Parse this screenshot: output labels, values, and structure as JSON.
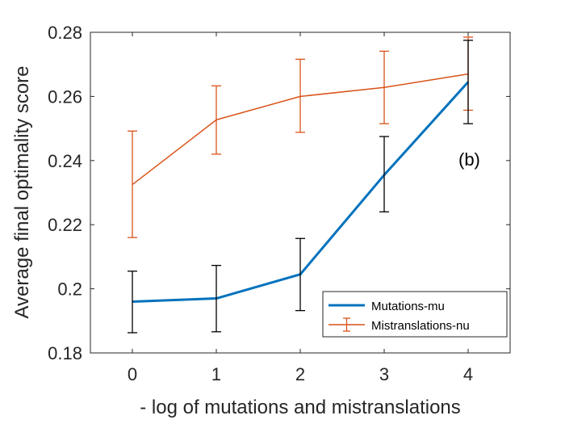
{
  "chart_data": {
    "type": "line",
    "title": "",
    "xlabel": "- log of mutations and mistranslations",
    "ylabel": "Average final optimality score",
    "x": [
      0,
      1,
      2,
      3,
      4
    ],
    "xlim": [
      -0.5,
      4.5
    ],
    "ylim": [
      0.18,
      0.28
    ],
    "xticks": [
      "0",
      "1",
      "2",
      "3",
      "4"
    ],
    "yticks": [
      "0.18",
      "0.2",
      "0.22",
      "0.24",
      "0.26",
      "0.28"
    ],
    "ytick_values": [
      0.18,
      0.2,
      0.22,
      0.24,
      0.26,
      0.28
    ],
    "grid": false,
    "legend_position": "bottom-right",
    "annotation": "(b)",
    "series": [
      {
        "name": "Mutations-mu",
        "values": [
          0.196,
          0.197,
          0.2045,
          0.2355,
          0.2645
        ],
        "err_low": [
          0.1863,
          0.1866,
          0.1932,
          0.224,
          0.2515
        ],
        "err_high": [
          0.2055,
          0.2073,
          0.2157,
          0.2475,
          0.2775
        ],
        "line_color": "#0072BD",
        "errorbar_color": "#000000",
        "line_style": "thick-no-caps-in-legend"
      },
      {
        "name": "Mistranslations-nu",
        "values": [
          0.2325,
          0.2527,
          0.26,
          0.2628,
          0.267
        ],
        "err_low": [
          0.216,
          0.242,
          0.2488,
          0.2515,
          0.2557
        ],
        "err_high": [
          0.2492,
          0.2633,
          0.2716,
          0.2741,
          0.2785
        ],
        "line_color": "#D95319",
        "errorbar_color": "#D95319",
        "line_style": "thin-with-errorbar-in-legend"
      }
    ]
  }
}
